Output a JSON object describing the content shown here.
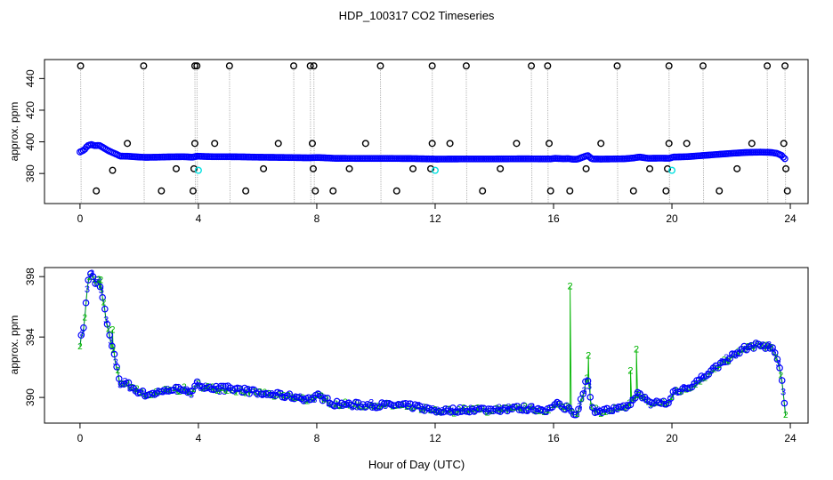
{
  "figure_title": "HDP_100317  CO2 Timeseries",
  "x_axis_label": "Hour of Day (UTC)",
  "colors": {
    "black": "#000000",
    "blue": "#0000ff",
    "green": "#00b400",
    "cyan": "#00e0e0",
    "grey": "#a0a0a0"
  },
  "chart_data": [
    {
      "type": "scatter",
      "title": "",
      "xlabel": "",
      "ylabel": "approx. ppm",
      "xlim": [
        -1.2,
        24.6
      ],
      "ylim": [
        361,
        452
      ],
      "xticks": [
        0,
        4,
        8,
        12,
        16,
        20,
        24
      ],
      "yticks": [
        380,
        400,
        420,
        440
      ],
      "spike_times": [
        0.02,
        2.15,
        3.88,
        3.95,
        5.05,
        7.22,
        7.78,
        7.9,
        10.15,
        11.9,
        13.05,
        15.25,
        15.8,
        18.15,
        19.9,
        21.05,
        23.22,
        23.82
      ],
      "spike_high": 448,
      "spike_low": 369,
      "mid_points": [
        {
          "x": 0.55,
          "y": 369
        },
        {
          "x": 1.1,
          "y": 382
        },
        {
          "x": 1.6,
          "y": 399
        },
        {
          "x": 2.75,
          "y": 369
        },
        {
          "x": 3.25,
          "y": 383
        },
        {
          "x": 3.82,
          "y": 369
        },
        {
          "x": 3.85,
          "y": 383
        },
        {
          "x": 3.88,
          "y": 399
        },
        {
          "x": 4.55,
          "y": 399
        },
        {
          "x": 5.6,
          "y": 369
        },
        {
          "x": 6.2,
          "y": 383
        },
        {
          "x": 6.7,
          "y": 399
        },
        {
          "x": 7.85,
          "y": 399
        },
        {
          "x": 7.88,
          "y": 383
        },
        {
          "x": 7.95,
          "y": 369
        },
        {
          "x": 8.55,
          "y": 369
        },
        {
          "x": 9.1,
          "y": 383
        },
        {
          "x": 9.65,
          "y": 399
        },
        {
          "x": 10.7,
          "y": 369
        },
        {
          "x": 11.25,
          "y": 383
        },
        {
          "x": 11.85,
          "y": 383
        },
        {
          "x": 11.9,
          "y": 399
        },
        {
          "x": 12.5,
          "y": 399
        },
        {
          "x": 13.6,
          "y": 369
        },
        {
          "x": 14.2,
          "y": 383
        },
        {
          "x": 14.75,
          "y": 399
        },
        {
          "x": 15.85,
          "y": 399
        },
        {
          "x": 15.9,
          "y": 369
        },
        {
          "x": 16.55,
          "y": 369
        },
        {
          "x": 17.1,
          "y": 383
        },
        {
          "x": 17.6,
          "y": 399
        },
        {
          "x": 18.7,
          "y": 369
        },
        {
          "x": 19.25,
          "y": 383
        },
        {
          "x": 19.8,
          "y": 369
        },
        {
          "x": 19.85,
          "y": 383
        },
        {
          "x": 19.9,
          "y": 399
        },
        {
          "x": 20.5,
          "y": 399
        },
        {
          "x": 21.6,
          "y": 369
        },
        {
          "x": 22.2,
          "y": 383
        },
        {
          "x": 22.7,
          "y": 399
        },
        {
          "x": 23.78,
          "y": 399
        },
        {
          "x": 23.85,
          "y": 383
        },
        {
          "x": 23.9,
          "y": 369
        }
      ],
      "cyan_points": [
        {
          "x": 4.0,
          "y": 382
        },
        {
          "x": 12.0,
          "y": 382
        },
        {
          "x": 20.0,
          "y": 382
        }
      ]
    },
    {
      "type": "scatter",
      "title": "",
      "xlabel": "Hour of Day (UTC)",
      "ylabel": "approx. ppm",
      "xlim": [
        -1.2,
        24.6
      ],
      "ylim": [
        388.3,
        398.6
      ],
      "xticks": [
        0,
        4,
        8,
        12,
        16,
        20,
        24
      ],
      "yticks": [
        390,
        394,
        398
      ],
      "series": [
        {
          "name": "1",
          "marker": "circle",
          "color": "#0000ff"
        },
        {
          "name": "2",
          "marker": "2",
          "color": "#00b400"
        },
        {
          "name": "3",
          "marker": "3",
          "color": "#0000ff"
        }
      ],
      "baseline": [
        [
          0.0,
          393.6
        ],
        [
          0.15,
          395.0
        ],
        [
          0.25,
          397.5
        ],
        [
          0.38,
          398.3
        ],
        [
          0.5,
          397.6
        ],
        [
          0.65,
          397.8
        ],
        [
          0.8,
          396.2
        ],
        [
          0.95,
          394.5
        ],
        [
          1.1,
          393.2
        ],
        [
          1.25,
          392.0
        ],
        [
          1.35,
          391.0
        ],
        [
          1.6,
          390.9
        ],
        [
          1.9,
          390.5
        ],
        [
          2.2,
          390.2
        ],
        [
          2.6,
          390.3
        ],
        [
          3.0,
          390.5
        ],
        [
          3.5,
          390.6
        ],
        [
          3.8,
          390.3
        ],
        [
          3.95,
          390.9
        ],
        [
          4.5,
          390.6
        ],
        [
          5.0,
          390.6
        ],
        [
          5.5,
          390.5
        ],
        [
          6.0,
          390.3
        ],
        [
          6.5,
          390.2
        ],
        [
          7.0,
          390.1
        ],
        [
          7.7,
          389.9
        ],
        [
          8.05,
          390.1
        ],
        [
          8.6,
          389.6
        ],
        [
          9.5,
          389.5
        ],
        [
          10.5,
          389.5
        ],
        [
          11.3,
          389.4
        ],
        [
          11.8,
          389.2
        ],
        [
          12.05,
          389.1
        ],
        [
          13.0,
          389.2
        ],
        [
          14.0,
          389.2
        ],
        [
          15.0,
          389.3
        ],
        [
          15.9,
          389.2
        ],
        [
          16.05,
          389.6
        ],
        [
          16.3,
          389.3
        ],
        [
          16.5,
          389.4
        ],
        [
          16.65,
          389.0
        ],
        [
          16.8,
          389.0
        ],
        [
          17.0,
          390.4
        ],
        [
          17.15,
          391.4
        ],
        [
          17.3,
          389.2
        ],
        [
          17.6,
          389.1
        ],
        [
          18.0,
          389.2
        ],
        [
          18.4,
          389.3
        ],
        [
          18.7,
          389.8
        ],
        [
          18.9,
          390.4
        ],
        [
          19.2,
          389.6
        ],
        [
          19.6,
          389.7
        ],
        [
          19.9,
          389.6
        ],
        [
          20.05,
          390.4
        ],
        [
          20.5,
          390.6
        ],
        [
          21.0,
          391.3
        ],
        [
          21.5,
          392.0
        ],
        [
          22.0,
          392.7
        ],
        [
          22.5,
          393.3
        ],
        [
          23.0,
          393.5
        ],
        [
          23.35,
          393.3
        ],
        [
          23.55,
          392.7
        ],
        [
          23.7,
          391.5
        ],
        [
          23.8,
          389.5
        ],
        [
          23.87,
          388.7
        ]
      ],
      "green_spikes": [
        {
          "x": 16.56,
          "y": 397.4
        },
        {
          "x": 17.18,
          "y": 392.8
        },
        {
          "x": 18.8,
          "y": 393.2
        },
        {
          "x": 18.6,
          "y": 391.8
        },
        {
          "x": 0.7,
          "y": 397.8
        },
        {
          "x": 1.1,
          "y": 394.5
        }
      ]
    }
  ]
}
